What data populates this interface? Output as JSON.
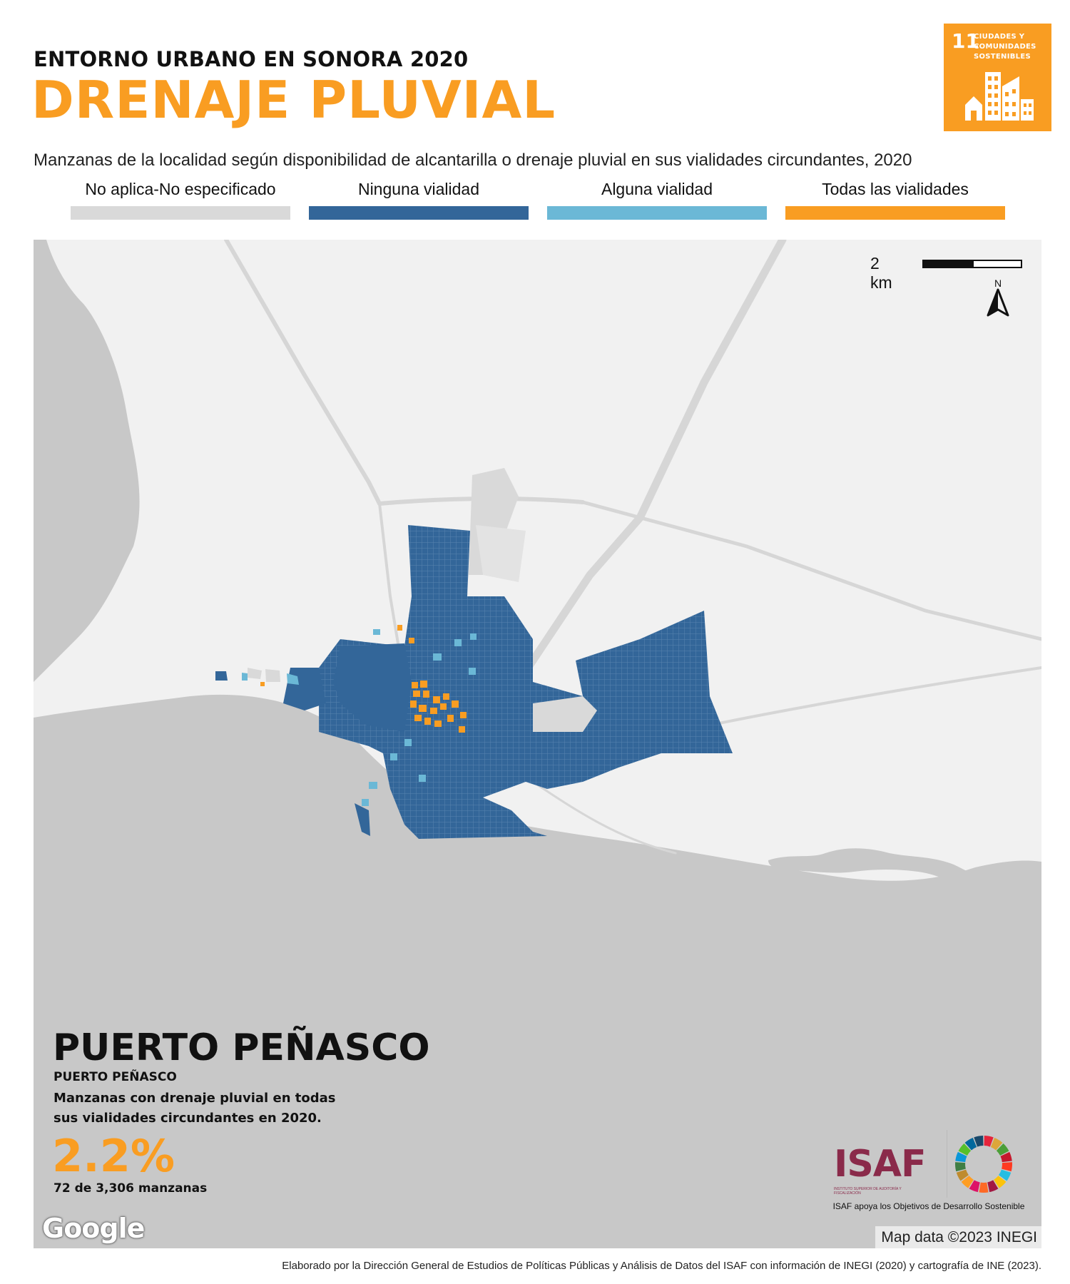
{
  "header": {
    "super_title": "ENTORNO URBANO EN SONORA 2020",
    "title": "DRENAJE PLUVIAL",
    "subtitle": "Manzanas de la localidad según disponibilidad de alcantarilla o drenaje pluvial en sus vialidades circundantes, 2020"
  },
  "ods_badge": {
    "number": "11",
    "label": "CIUDADES Y COMUNIDADES SOSTENIBLES",
    "color": "#f99d22",
    "icon": "city-buildings-icon"
  },
  "legend": {
    "items": [
      {
        "label": "No aplica-No especificado",
        "color": "#d9d9d9"
      },
      {
        "label": "Ninguna vialidad",
        "color": "#336699"
      },
      {
        "label": "Alguna vialidad",
        "color": "#6bb8d6"
      },
      {
        "label": "Todas las vialidades",
        "color": "#f99d22"
      }
    ]
  },
  "map": {
    "scale_label": "2 km",
    "north_label": "N",
    "attribution": "Map data ©2023 INEGI",
    "provider_logo": "Google",
    "land_color": "#f1f1f1",
    "sea_color": "#c8c8c8",
    "road_color": "#d6d6d6"
  },
  "locality": {
    "name": "PUERTO PEÑASCO",
    "municipality": "PUERTO PEÑASCO",
    "description": "Manzanas con drenaje pluvial en todas sus vialidades circundantes en 2020.",
    "percentage": "2.2%",
    "count_text": "72 de 3,306 manzanas",
    "percentage_value": 2.2,
    "blocks_with_drainage": 72,
    "blocks_total": 3306
  },
  "logos": {
    "isaf": "ISAF",
    "isaf_small": "INSTITUTO SUPERIOR DE AUDITORÍA Y FISCALIZACIÓN",
    "caption": "ISAF apoya los Objetivos de Desarrollo Sostenible"
  },
  "footer": {
    "credit": "Elaborado por la Dirección General de Estudios de Políticas Públicas y Análisis de Datos del ISAF con información de INEGI (2020) y cartografía de INE (2023)."
  }
}
